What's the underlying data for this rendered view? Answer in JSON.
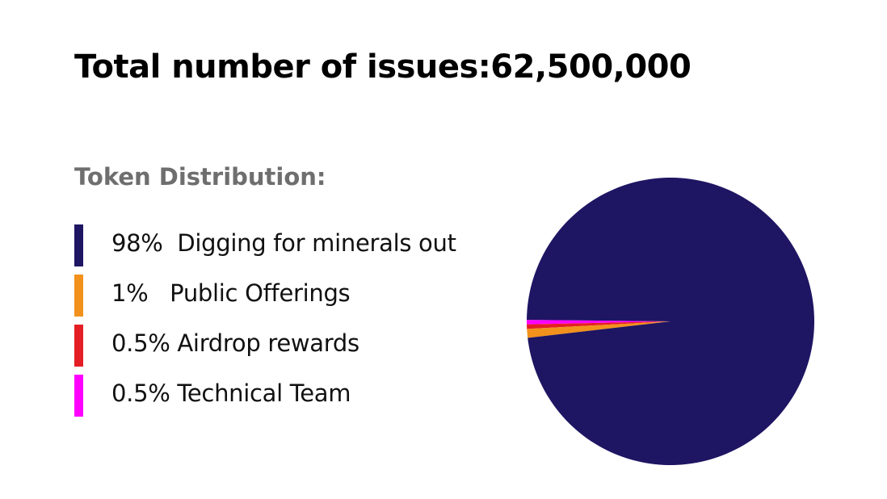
{
  "title": "Total number of issues:62,500,000",
  "subtitle": "Token Distribution:",
  "legend": [
    {
      "label": "98%  Digging for minerals out",
      "color": "#1e1563"
    },
    {
      "label": "1%   Public Offerings",
      "color": "#f2911b"
    },
    {
      "label": "0.5% Airdrop rewards",
      "color": "#e31e24"
    },
    {
      "label": "0.5% Technical Team",
      "color": "#ff00ff"
    }
  ],
  "chart_data": {
    "type": "pie",
    "title": "Total number of issues:62,500,000",
    "subtitle": "Token Distribution:",
    "categories": [
      "Digging for minerals out",
      "Public Offerings",
      "Airdrop rewards",
      "Technical Team"
    ],
    "values": [
      98,
      1,
      0.5,
      0.5
    ],
    "unit": "%",
    "colors": [
      "#1e1563",
      "#f2911b",
      "#e31e24",
      "#ff00ff"
    ],
    "legend_position": "left"
  }
}
